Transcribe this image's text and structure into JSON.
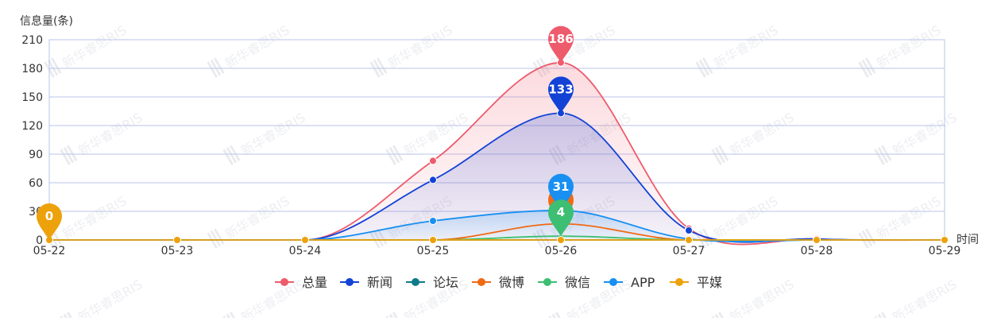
{
  "chart_data": {
    "type": "line",
    "smooth": true,
    "ylabel": "信息量(条)",
    "xlabel": "时间",
    "ylim": [
      0,
      210
    ],
    "y_ticks": [
      0,
      30,
      60,
      90,
      120,
      150,
      180,
      210
    ],
    "categories": [
      "05-22",
      "05-23",
      "05-24",
      "05-25",
      "05-26",
      "05-27",
      "05-28",
      "05-29"
    ],
    "grid": true,
    "legend_position": "bottom-center",
    "watermark_text": "新华睿思RIS",
    "series": [
      {
        "name": "总量",
        "color": "#ee5b6c",
        "area": true,
        "values": [
          0,
          0,
          0,
          83,
          186,
          12,
          1,
          0
        ],
        "max_pin": true
      },
      {
        "name": "新闻",
        "color": "#1242d6",
        "area": true,
        "values": [
          0,
          0,
          0,
          63,
          133,
          10,
          1,
          0
        ],
        "max_pin": true
      },
      {
        "name": "论坛",
        "color": "#0f7b8a",
        "area": false,
        "values": [
          0,
          0,
          0,
          0,
          0,
          0,
          0,
          0
        ],
        "max_pin": false
      },
      {
        "name": "微博",
        "color": "#f06a14",
        "area": false,
        "values": [
          0,
          0,
          0,
          0,
          17,
          0,
          0,
          0
        ],
        "max_pin": true
      },
      {
        "name": "微信",
        "color": "#3cbf72",
        "area": false,
        "values": [
          0,
          0,
          0,
          0,
          4,
          0,
          0,
          0
        ],
        "max_pin": true
      },
      {
        "name": "APP",
        "color": "#1890f2",
        "area": true,
        "values": [
          0,
          0,
          0,
          20,
          31,
          1,
          0,
          0
        ],
        "max_pin": true
      },
      {
        "name": "平媒",
        "color": "#eda10a",
        "area": false,
        "values": [
          0,
          0,
          0,
          0,
          0,
          0,
          0,
          0
        ],
        "max_pin": true,
        "pin_index": 0
      }
    ]
  }
}
